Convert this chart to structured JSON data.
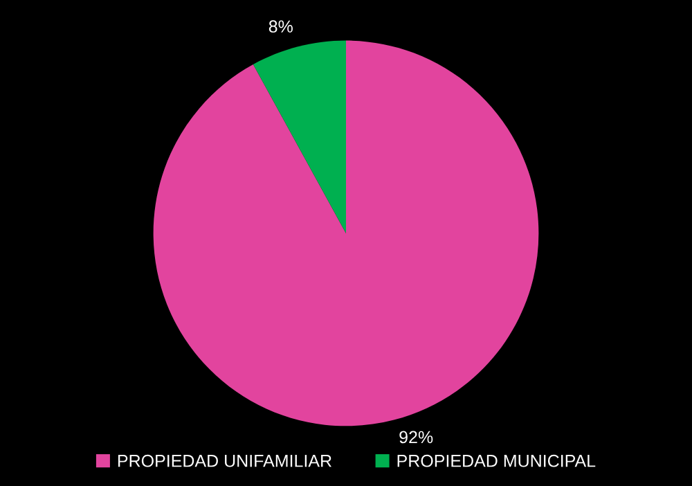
{
  "chart_data": {
    "type": "pie",
    "categories": [
      "PROPIEDAD UNIFAMILIAR",
      "PROPIEDAD MUNICIPAL"
    ],
    "values": [
      92,
      8
    ],
    "colors": [
      "#e2449e",
      "#00b050"
    ],
    "value_labels": [
      "92%",
      "8%"
    ],
    "legend": "bottom"
  }
}
